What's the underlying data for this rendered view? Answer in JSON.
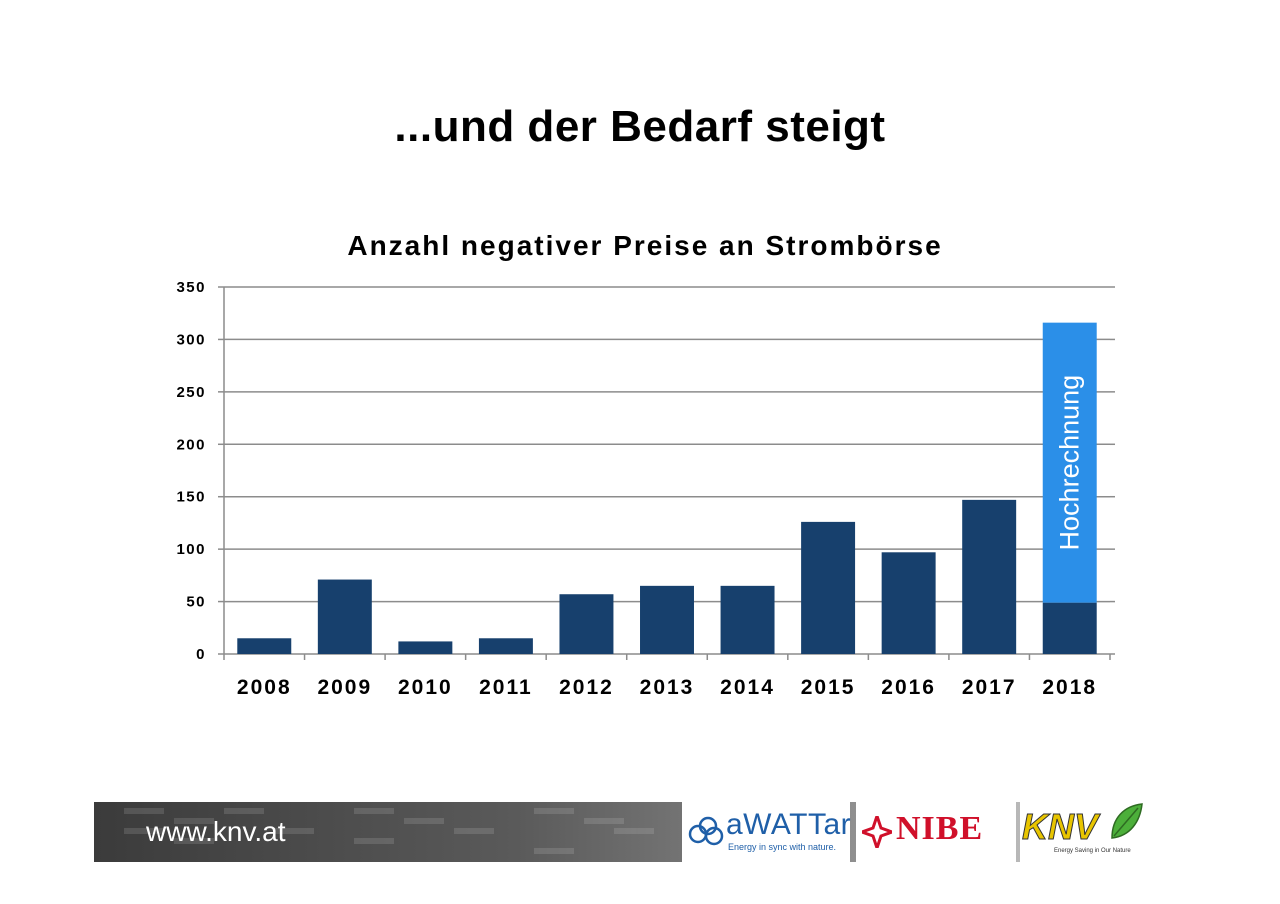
{
  "slide": {
    "title": "...und der Bedarf steigt",
    "footer_url": "www.knv.at"
  },
  "logos": {
    "awattar": {
      "name": "aWATTar",
      "tagline": "Energy in sync with nature.",
      "color": "#1f5fa8"
    },
    "nibe": {
      "name": "NIBE",
      "color": "#d0102a"
    },
    "knv": {
      "name": "KNV",
      "tagline": "Energy Saving in Our Nature",
      "color": "#e8c500",
      "leaf_color": "#4caf3a"
    }
  },
  "chart_data": {
    "type": "bar",
    "title": "Anzahl negativer Preise an Strombörse",
    "categories": [
      "2008",
      "2009",
      "2010",
      "2011",
      "2012",
      "2013",
      "2014",
      "2015",
      "2016",
      "2017",
      "2018"
    ],
    "series": [
      {
        "values": [
          15,
          71,
          12,
          15,
          57,
          65,
          65,
          126,
          97,
          147,
          49
        ],
        "color": "#17406d"
      },
      {
        "values": [
          0,
          0,
          0,
          0,
          0,
          0,
          0,
          0,
          0,
          0,
          267
        ],
        "color": "#2b8fe8"
      }
    ],
    "annotations": [
      {
        "category": "2018",
        "text": "Hochrechnung"
      }
    ],
    "ylim": [
      0,
      350
    ],
    "yticks": [
      0,
      50,
      100,
      150,
      200,
      250,
      300,
      350
    ],
    "grid": true,
    "xlabel": "",
    "ylabel": ""
  }
}
